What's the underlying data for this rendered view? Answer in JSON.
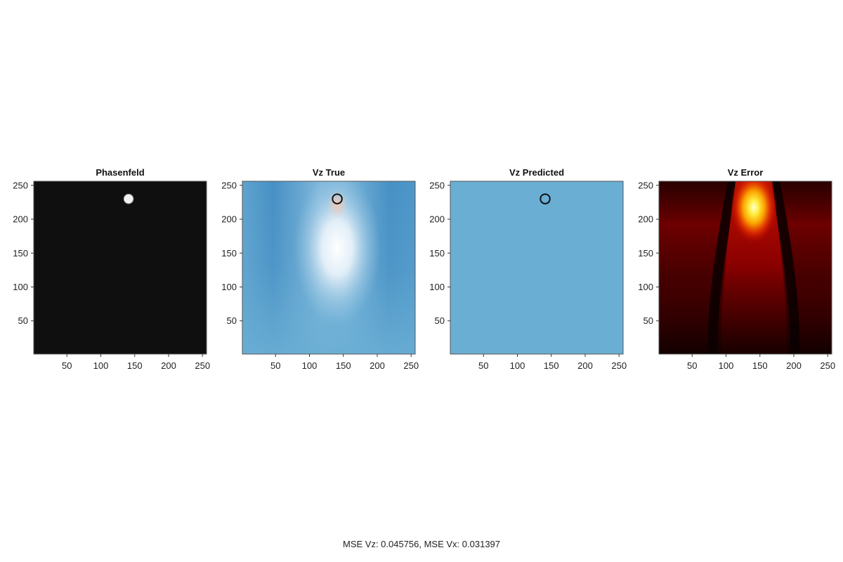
{
  "chart_data": [
    {
      "type": "heatmap",
      "title": "Phasenfeld",
      "xlim": [
        1,
        256
      ],
      "ylim": [
        1,
        256
      ],
      "xticks": [
        50,
        100,
        150,
        200,
        250
      ],
      "yticks": [
        50,
        100,
        150,
        200,
        250
      ],
      "field": "phase",
      "colormap": "grays",
      "background_color": "#0f0f0f",
      "feature": {
        "type": "circle",
        "cx": 141,
        "cy": 230,
        "r": 7,
        "fill": "#f2f2f2"
      }
    },
    {
      "type": "heatmap",
      "title": "Vz True",
      "xlim": [
        1,
        256
      ],
      "ylim": [
        1,
        256
      ],
      "xticks": [
        50,
        100,
        150,
        200,
        250
      ],
      "yticks": [
        50,
        100,
        150,
        200,
        250
      ],
      "field": "vz_true",
      "colormap": "blues",
      "background_color": "#6aaed4",
      "feature": {
        "type": "ring",
        "cx": 141,
        "cy": 230,
        "r": 7,
        "stroke": "#111111"
      }
    },
    {
      "type": "heatmap",
      "title": "Vz Predicted",
      "xlim": [
        1,
        256
      ],
      "ylim": [
        1,
        256
      ],
      "xticks": [
        50,
        100,
        150,
        200,
        250
      ],
      "yticks": [
        50,
        100,
        150,
        200,
        250
      ],
      "field": "vz_pred",
      "colormap": "blues",
      "background_color": "#6aaed4",
      "feature": {
        "type": "ring",
        "cx": 141,
        "cy": 230,
        "r": 7,
        "stroke": "#111111"
      }
    },
    {
      "type": "heatmap",
      "title": "Vz Error",
      "xlim": [
        1,
        256
      ],
      "ylim": [
        1,
        256
      ],
      "xticks": [
        50,
        100,
        150,
        200,
        250
      ],
      "yticks": [
        50,
        100,
        150,
        200,
        250
      ],
      "field": "vz_error",
      "colormap": "hot",
      "background_color": "#2a0000",
      "feature": {
        "type": "hotspot",
        "cx": 141,
        "cy": 230
      }
    }
  ],
  "footer_text": "MSE Vz: 0.045756, MSE Vx: 0.031397"
}
